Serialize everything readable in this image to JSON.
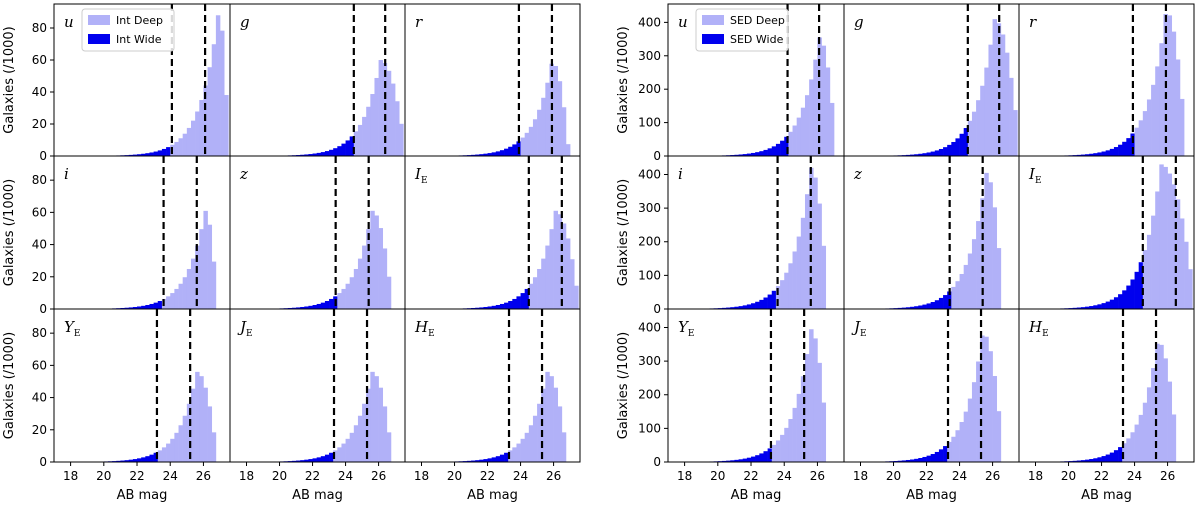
{
  "chart_data": {
    "type": "bar",
    "x_range": [
      17,
      27.6
    ],
    "xticks": [
      18,
      20,
      22,
      24,
      26
    ],
    "bin_width": 0.25,
    "xlabel": "AB mag",
    "ylabel": "Galaxies (/1000)",
    "colors": {
      "wide": "#0000ee",
      "deep": "#b1b1f8",
      "cut": "#000000"
    },
    "panels": [
      {
        "name": "left",
        "legend_location": "top-left of first panel",
        "series_names": {
          "deep": "Int Deep",
          "wide": "Int Wide"
        },
        "ylim": [
          0,
          95
        ],
        "yticks": [
          0,
          20,
          40,
          60,
          80
        ],
        "subplots": [
          {
            "band": "u",
            "sub": "",
            "wide_cut": 24.1,
            "deep_cut": 26.1,
            "peak": 26.9,
            "peak_value": 90,
            "end": 27.5
          },
          {
            "band": "g",
            "sub": "",
            "wide_cut": 24.5,
            "deep_cut": 26.4,
            "peak": 26.1,
            "peak_value": 60,
            "end": 27.6
          },
          {
            "band": "r",
            "sub": "",
            "wide_cut": 23.9,
            "deep_cut": 25.9,
            "peak": 25.9,
            "peak_value": 59,
            "end": 26.9
          },
          {
            "band": "i",
            "sub": "",
            "wide_cut": 23.6,
            "deep_cut": 25.6,
            "peak": 26.1,
            "peak_value": 61,
            "end": 26.8
          },
          {
            "band": "z",
            "sub": "",
            "wide_cut": 23.4,
            "deep_cut": 25.4,
            "peak": 25.6,
            "peak_value": 61,
            "end": 26.8
          },
          {
            "band": "I",
            "sub": "E",
            "wide_cut": 24.5,
            "deep_cut": 26.5,
            "peak": 26.1,
            "peak_value": 61,
            "end": 27.5
          },
          {
            "band": "Y",
            "sub": "E",
            "wide_cut": 23.2,
            "deep_cut": 25.2,
            "peak": 25.6,
            "peak_value": 56,
            "end": 26.8
          },
          {
            "band": "J",
            "sub": "E",
            "wide_cut": 23.3,
            "deep_cut": 25.3,
            "peak": 25.6,
            "peak_value": 56,
            "end": 26.8
          },
          {
            "band": "H",
            "sub": "E",
            "wide_cut": 23.3,
            "deep_cut": 25.3,
            "peak": 25.6,
            "peak_value": 56,
            "end": 26.8
          }
        ]
      },
      {
        "name": "right",
        "legend_location": "top-left of first panel",
        "series_names": {
          "deep": "SED Deep",
          "wide": "SED Wide"
        },
        "ylim": [
          0,
          455
        ],
        "yticks": [
          0,
          100,
          200,
          300,
          400
        ],
        "subplots": [
          {
            "band": "u",
            "sub": "",
            "wide_cut": 24.2,
            "deep_cut": 26.1,
            "peak": 26.1,
            "peak_value": 355,
            "end": 27.1
          },
          {
            "band": "g",
            "sub": "",
            "wide_cut": 24.5,
            "deep_cut": 26.4,
            "peak": 26.1,
            "peak_value": 410,
            "end": 27.6
          },
          {
            "band": "r",
            "sub": "",
            "wide_cut": 23.9,
            "deep_cut": 25.9,
            "peak": 25.9,
            "peak_value": 435,
            "end": 27.1
          },
          {
            "band": "i",
            "sub": "",
            "wide_cut": 23.6,
            "deep_cut": 25.6,
            "peak": 25.6,
            "peak_value": 420,
            "end": 26.6
          },
          {
            "band": "z",
            "sub": "",
            "wide_cut": 23.4,
            "deep_cut": 25.4,
            "peak": 25.6,
            "peak_value": 405,
            "end": 26.6
          },
          {
            "band": "I",
            "sub": "E",
            "wide_cut": 24.5,
            "deep_cut": 26.5,
            "peak": 25.6,
            "peak_value": 430,
            "end": 27.6
          },
          {
            "band": "Y",
            "sub": "E",
            "wide_cut": 23.2,
            "deep_cut": 25.2,
            "peak": 25.6,
            "peak_value": 395,
            "end": 26.6
          },
          {
            "band": "J",
            "sub": "E",
            "wide_cut": 23.3,
            "deep_cut": 25.3,
            "peak": 25.4,
            "peak_value": 385,
            "end": 26.6
          },
          {
            "band": "H",
            "sub": "E",
            "wide_cut": 23.3,
            "deep_cut": 25.3,
            "peak": 25.4,
            "peak_value": 360,
            "end": 26.6
          }
        ]
      }
    ]
  }
}
